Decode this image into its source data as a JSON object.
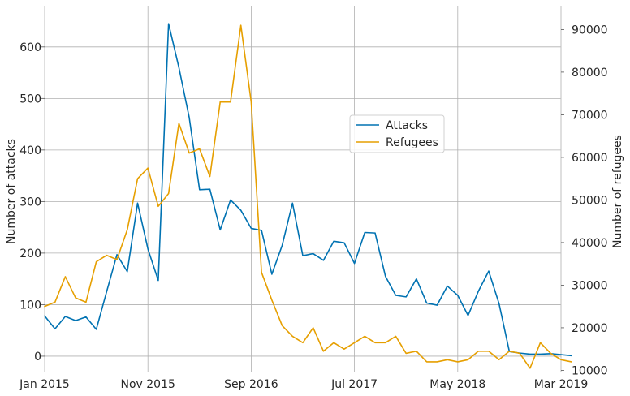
{
  "chart_data": {
    "type": "line",
    "xlabel": "",
    "ylabel_left": "Number of attacks",
    "ylabel_right": "Number of refugees",
    "x_start": "Jan 2015",
    "x_tick_labels": [
      "Jan 2015",
      "Nov 2015",
      "Sep 2016",
      "Jul 2017",
      "May 2018",
      "Mar 2019"
    ],
    "ylim_left": [
      -30,
      680
    ],
    "yticks_left": [
      0,
      100,
      200,
      300,
      400,
      500,
      600
    ],
    "ylim_right": [
      9700,
      95600
    ],
    "yticks_right": [
      10000,
      20000,
      30000,
      40000,
      50000,
      60000,
      70000,
      80000,
      90000
    ],
    "grid": true,
    "legend_position": "center-right",
    "series": [
      {
        "name": "Attacks",
        "axis": "left",
        "color": "#0072b2",
        "values": [
          78,
          53,
          77,
          69,
          76,
          52,
          125,
          197,
          164,
          297,
          208,
          147,
          645,
          560,
          463,
          323,
          324,
          245,
          303,
          283,
          248,
          244,
          159,
          215,
          297,
          195,
          199,
          186,
          223,
          220,
          180,
          240,
          239,
          155,
          118,
          115,
          150,
          103,
          99,
          136,
          118,
          79,
          126,
          165,
          102,
          9,
          6,
          4,
          4,
          5,
          3,
          1
        ]
      },
      {
        "name": "Refugees",
        "axis": "right",
        "color": "#e69f00",
        "values": [
          25000,
          26000,
          32000,
          27000,
          26000,
          35500,
          37000,
          36000,
          43000,
          55000,
          57500,
          48500,
          51500,
          68000,
          61000,
          62000,
          55500,
          73000,
          73000,
          91000,
          73000,
          33000,
          26500,
          20500,
          18000,
          16500,
          20000,
          14500,
          16500,
          15000,
          16500,
          18000,
          16500,
          16500,
          18000,
          14000,
          14500,
          12000,
          12000,
          12500,
          12000,
          12500,
          14500,
          14500,
          12500,
          14500,
          14000,
          10500,
          16500,
          14000,
          12500,
          12000
        ]
      }
    ]
  }
}
